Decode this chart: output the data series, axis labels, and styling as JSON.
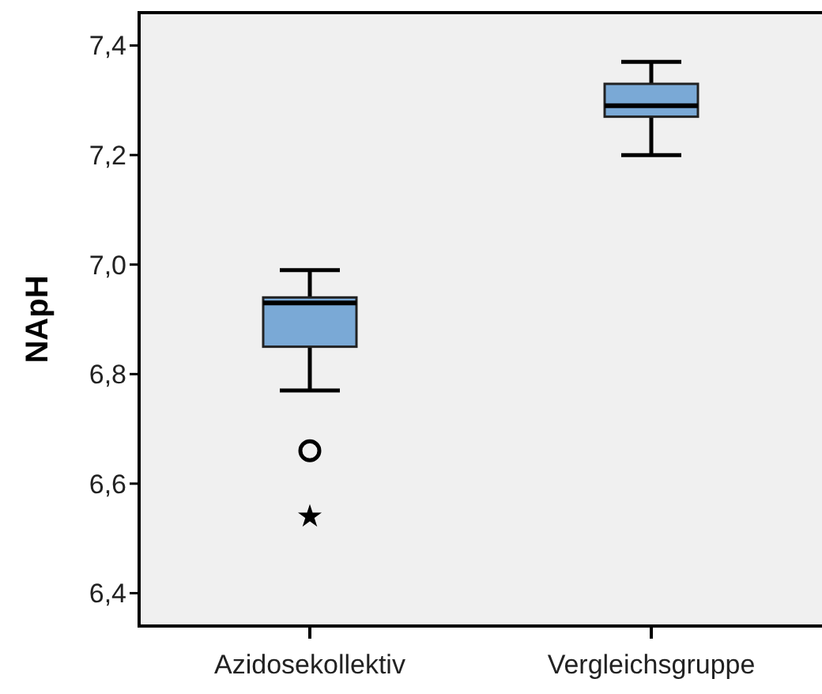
{
  "chart_data": {
    "type": "box",
    "ylabel": "NApH",
    "categories": [
      "Azidosekollektiv",
      "Vergleichsgruppe"
    ],
    "ylim": [
      6.34,
      7.46
    ],
    "yticks": [
      {
        "value": 6.4,
        "label": "6,4"
      },
      {
        "value": 6.6,
        "label": "6,6"
      },
      {
        "value": 6.8,
        "label": "6,8"
      },
      {
        "value": 7.0,
        "label": "7,0"
      },
      {
        "value": 7.2,
        "label": "7,2"
      },
      {
        "value": 7.4,
        "label": "7,4"
      }
    ],
    "grid": false,
    "series": [
      {
        "color": "#7aa9d6",
        "boxes": [
          {
            "low": 6.77,
            "q1": 6.85,
            "median": 6.93,
            "q3": 6.94,
            "high": 6.99,
            "outliers": [
              6.66
            ]
          },
          {
            "low": 7.2,
            "q1": 7.27,
            "median": 7.29,
            "q3": 7.33,
            "high": 7.37
          }
        ]
      },
      {
        "type": "scatter",
        "color": "#000000",
        "marker": "star",
        "x": [
          "Azidosekollektiv"
        ],
        "values": [
          6.54
        ]
      }
    ]
  }
}
